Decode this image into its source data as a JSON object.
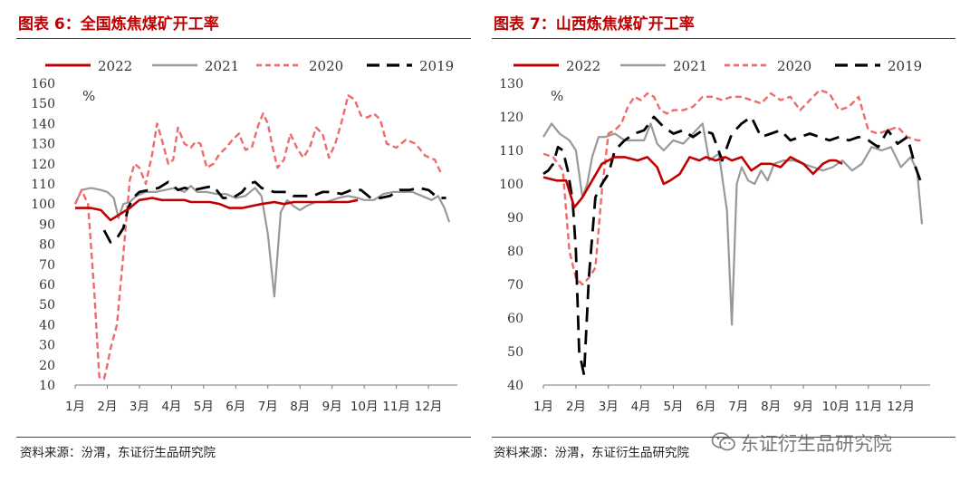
{
  "watermark": {
    "text": "东证衍生品研究院"
  },
  "panels": [
    {
      "title": "图表 6：全国炼焦煤矿开工率",
      "source": "资料来源：汾渭，东证衍生品研究院"
    },
    {
      "title": "图表 7：山西炼焦煤矿开工率",
      "source": "资料来源：汾渭，东证衍生品研究院"
    }
  ],
  "chart_data": [
    {
      "type": "line",
      "ylabel": "%",
      "ylim": [
        10,
        160
      ],
      "yticks": [
        10,
        20,
        30,
        40,
        50,
        60,
        70,
        80,
        90,
        100,
        110,
        120,
        130,
        140,
        150,
        160
      ],
      "xlim": [
        0,
        11.9
      ],
      "x_ticks": [
        "1月",
        "2月",
        "3月",
        "4月",
        "5月",
        "6月",
        "7月",
        "8月",
        "9月",
        "10月",
        "11月",
        "12月"
      ],
      "legend_position": "top",
      "series": [
        {
          "name": "2022",
          "color": "#c00000",
          "style": "solid",
          "width": 2.6,
          "x": [
            0,
            0.5,
            0.8,
            1.1,
            1.4,
            1.7,
            2.0,
            2.4,
            2.7,
            3.0,
            3.4,
            3.6,
            3.8,
            4.2,
            4.5,
            4.8,
            5.2,
            5.5,
            5.8,
            6.2,
            6.5,
            6.8,
            7.2,
            7.5,
            7.8,
            8.2,
            8.5,
            8.8
          ],
          "y": [
            98,
            98,
            97,
            92,
            95,
            98,
            102,
            103,
            102,
            102,
            102,
            101,
            101,
            101,
            100,
            98,
            98,
            99,
            100,
            101,
            100,
            101,
            101,
            101,
            101,
            101,
            101,
            102
          ]
        },
        {
          "name": "2021",
          "color": "#999999",
          "style": "solid",
          "width": 2.2,
          "x": [
            0,
            0.2,
            0.5,
            0.8,
            1.0,
            1.2,
            1.35,
            1.5,
            1.7,
            1.9,
            2.2,
            2.5,
            2.8,
            3.1,
            3.4,
            3.6,
            3.8,
            4.1,
            4.4,
            4.7,
            5.0,
            5.3,
            5.6,
            5.8,
            6.0,
            6.2,
            6.4,
            6.6,
            6.8,
            7.0,
            7.2,
            7.5,
            7.8,
            8.2,
            8.5,
            8.8,
            9.0,
            9.3,
            9.6,
            9.9,
            10.2,
            10.5,
            10.8,
            11.1,
            11.3,
            11.5,
            11.65
          ],
          "y": [
            100,
            107,
            108,
            107,
            106,
            103,
            93,
            100,
            101,
            104,
            106,
            106,
            107,
            108,
            106,
            109,
            106,
            106,
            105,
            105,
            103,
            104,
            108,
            104,
            85,
            54,
            96,
            102,
            99,
            97,
            99,
            101,
            101,
            103,
            104,
            103,
            102,
            102,
            105,
            106,
            106,
            106,
            104,
            102,
            104,
            98,
            91
          ]
        },
        {
          "name": "2020",
          "color": "#ee6b6b",
          "style": "dashed",
          "width": 2.4,
          "x": [
            0,
            0.2,
            0.4,
            0.6,
            0.75,
            0.9,
            1.0,
            1.1,
            1.3,
            1.5,
            1.7,
            1.85,
            2.0,
            2.2,
            2.4,
            2.55,
            2.7,
            2.9,
            3.05,
            3.2,
            3.4,
            3.6,
            3.75,
            3.9,
            4.1,
            4.3,
            4.5,
            4.7,
            4.9,
            5.1,
            5.3,
            5.5,
            5.7,
            5.85,
            6.0,
            6.15,
            6.3,
            6.5,
            6.7,
            6.9,
            7.1,
            7.3,
            7.5,
            7.7,
            7.9,
            8.1,
            8.3,
            8.5,
            8.7,
            8.9,
            9.1,
            9.3,
            9.5,
            9.7,
            10.0,
            10.3,
            10.6,
            10.9,
            11.2,
            11.4
          ],
          "y": [
            100,
            107,
            100,
            55,
            14,
            13,
            20,
            28,
            40,
            75,
            112,
            120,
            118,
            110,
            125,
            140,
            132,
            120,
            122,
            138,
            130,
            128,
            131,
            130,
            118,
            120,
            125,
            128,
            132,
            135,
            127,
            128,
            139,
            145,
            140,
            128,
            118,
            122,
            135,
            128,
            123,
            128,
            138,
            135,
            123,
            130,
            141,
            154,
            152,
            144,
            143,
            145,
            142,
            130,
            128,
            132,
            130,
            124,
            122,
            115
          ]
        },
        {
          "name": "2019",
          "color": "#000000",
          "style": "dashed",
          "width": 2.8,
          "x": [
            0.9,
            1.1,
            1.3,
            1.5,
            1.65,
            1.8,
            2.0,
            2.3,
            2.6,
            2.9,
            3.2,
            3.4,
            3.7,
            4.0,
            4.3,
            4.6,
            4.9,
            5.2,
            5.4,
            5.6,
            5.8,
            6.0,
            6.2,
            6.4,
            6.6,
            6.8,
            7.1,
            7.4,
            7.7,
            8.0,
            8.3,
            8.6,
            8.9,
            9.2,
            9.5,
            9.8,
            10.1,
            10.4,
            10.7,
            11.0,
            11.3,
            11.55
          ],
          "y": [
            87,
            81,
            83,
            88,
            98,
            103,
            106,
            107,
            108,
            111,
            107,
            108,
            107,
            108,
            109,
            103,
            103,
            106,
            110,
            111,
            108,
            107,
            106,
            106,
            106,
            104,
            104,
            104,
            106,
            106,
            105,
            107,
            107,
            103,
            103,
            104,
            107,
            107,
            108,
            107,
            103,
            103
          ]
        }
      ]
    },
    {
      "type": "line",
      "ylabel": "%",
      "ylim": [
        40,
        130
      ],
      "yticks": [
        40,
        50,
        60,
        70,
        80,
        90,
        100,
        110,
        120,
        130
      ],
      "xlim": [
        0,
        11.9
      ],
      "x_ticks": [
        "1月",
        "2月",
        "3月",
        "4月",
        "5月",
        "6月",
        "7月",
        "8月",
        "9月",
        "10月",
        "11月",
        "12月"
      ],
      "legend_position": "top",
      "series": [
        {
          "name": "2022",
          "color": "#c00000",
          "style": "solid",
          "width": 2.6,
          "x": [
            0,
            0.4,
            0.7,
            0.95,
            1.2,
            1.5,
            1.8,
            2.2,
            2.5,
            2.9,
            3.2,
            3.5,
            3.7,
            3.9,
            4.2,
            4.5,
            4.8,
            5.0,
            5.3,
            5.6,
            5.8,
            6.1,
            6.4,
            6.7,
            7.0,
            7.3,
            7.6,
            8.0,
            8.3,
            8.6,
            8.8,
            9.0,
            9.2
          ],
          "y": [
            102,
            101,
            101,
            93,
            96,
            101,
            106,
            108,
            108,
            107,
            108,
            105,
            100,
            101,
            103,
            108,
            107,
            108,
            107,
            108,
            107,
            108,
            104,
            106,
            106,
            105,
            108,
            106,
            103,
            106,
            107,
            107,
            106
          ]
        },
        {
          "name": "2021",
          "color": "#999999",
          "style": "solid",
          "width": 2.2,
          "x": [
            0,
            0.25,
            0.5,
            0.8,
            1.0,
            1.2,
            1.35,
            1.5,
            1.7,
            1.9,
            2.2,
            2.5,
            2.8,
            3.1,
            3.3,
            3.5,
            3.7,
            4.0,
            4.3,
            4.6,
            4.9,
            5.1,
            5.4,
            5.65,
            5.8,
            5.95,
            6.1,
            6.3,
            6.5,
            6.7,
            6.9,
            7.1,
            7.4,
            7.7,
            8.0,
            8.3,
            8.6,
            8.9,
            9.2,
            9.5,
            9.8,
            10.1,
            10.4,
            10.7,
            11.0,
            11.3,
            11.5,
            11.65
          ],
          "y": [
            114,
            118,
            115,
            113,
            110,
            96,
            100,
            108,
            114,
            114,
            115,
            113,
            113,
            113,
            118,
            112,
            110,
            113,
            112,
            115,
            118,
            107,
            109,
            92,
            58,
            100,
            105,
            101,
            100,
            104,
            101,
            106,
            107,
            107,
            106,
            105,
            104,
            105,
            107,
            104,
            106,
            111,
            110,
            111,
            105,
            108,
            104,
            88
          ]
        },
        {
          "name": "2020",
          "color": "#ee6b6b",
          "style": "dashed",
          "width": 2.4,
          "x": [
            0,
            0.3,
            0.6,
            0.8,
            1.0,
            1.2,
            1.4,
            1.6,
            1.8,
            2.0,
            2.2,
            2.4,
            2.6,
            2.8,
            3.0,
            3.2,
            3.4,
            3.6,
            3.8,
            4.0,
            4.3,
            4.6,
            4.9,
            5.2,
            5.5,
            5.8,
            6.1,
            6.4,
            6.7,
            7.0,
            7.3,
            7.6,
            7.9,
            8.2,
            8.5,
            8.8,
            9.1,
            9.4,
            9.7,
            10.0,
            10.3,
            10.6,
            10.9,
            11.2,
            11.5,
            11.7
          ],
          "y": [
            109,
            108,
            104,
            80,
            72,
            70,
            72,
            75,
            98,
            115,
            116,
            118,
            123,
            126,
            125,
            127,
            126,
            122,
            121,
            122,
            122,
            123,
            126,
            126,
            125,
            126,
            126,
            125,
            124,
            127,
            125,
            126,
            122,
            125,
            128,
            127,
            122,
            123,
            126,
            116,
            115,
            116,
            117,
            114,
            113,
            113
          ]
        },
        {
          "name": "2019",
          "color": "#000000",
          "style": "dashed",
          "width": 2.8,
          "x": [
            0,
            0.15,
            0.3,
            0.45,
            0.6,
            0.75,
            0.9,
            1.0,
            1.1,
            1.25,
            1.4,
            1.6,
            1.8,
            2.0,
            2.2,
            2.5,
            2.8,
            3.1,
            3.4,
            3.7,
            4.0,
            4.3,
            4.6,
            4.9,
            5.2,
            5.5,
            5.8,
            6.1,
            6.4,
            6.7,
            7.0,
            7.3,
            7.6,
            7.9,
            8.2,
            8.5,
            8.8,
            9.1,
            9.4,
            9.7,
            10.0,
            10.3,
            10.6,
            10.9,
            11.2,
            11.45,
            11.6
          ],
          "y": [
            103,
            104,
            106,
            111,
            110,
            104,
            95,
            80,
            50,
            43,
            72,
            96,
            100,
            103,
            110,
            113,
            115,
            116,
            120,
            117,
            115,
            116,
            114,
            116,
            115,
            107,
            115,
            118,
            120,
            114,
            115,
            116,
            113,
            114,
            115,
            114,
            113,
            114,
            113,
            114,
            113,
            111,
            116,
            112,
            114,
            105,
            101
          ]
        }
      ]
    }
  ]
}
